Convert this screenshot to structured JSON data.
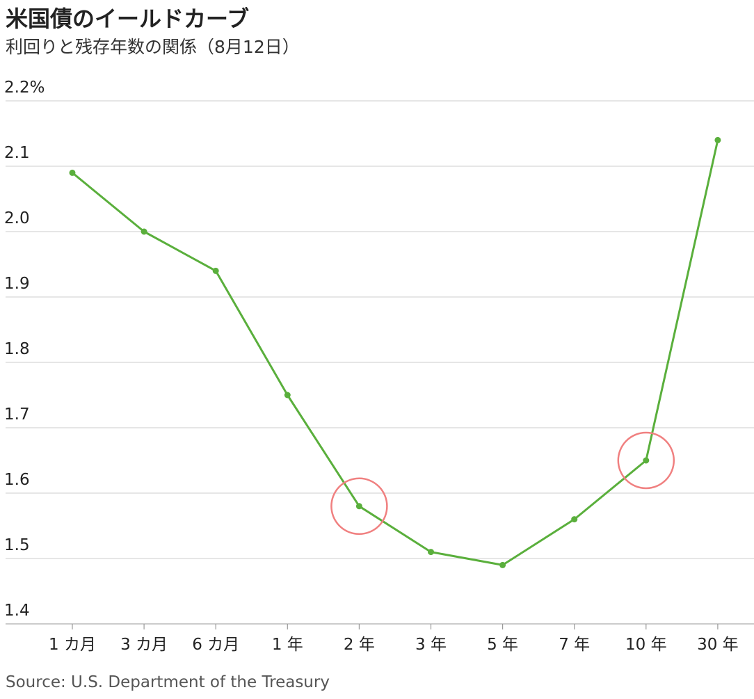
{
  "header": {
    "title": "米国債のイールドカーブ",
    "subtitle": "利回りと残存年数の関係（8月12日）"
  },
  "footer": {
    "source": "Source: U.S. Department of the Treasury"
  },
  "chart_data": {
    "type": "line",
    "title": "米国債のイールドカーブ",
    "subtitle": "利回りと残存年数の関係（8月12日）",
    "xlabel": "",
    "ylabel": "",
    "categories": [
      "1 カ月",
      "3 カ月",
      "6 カ月",
      "1 年",
      "2 年",
      "3 年",
      "5 年",
      "7 年",
      "10 年",
      "30 年"
    ],
    "series": [
      {
        "values": [
          2.09,
          2.0,
          1.94,
          1.75,
          1.58,
          1.51,
          1.49,
          1.56,
          1.65,
          2.14
        ],
        "color": "#5aaf3c"
      }
    ],
    "ylim": [
      1.4,
      2.2
    ],
    "yticks": [
      1.4,
      1.5,
      1.6,
      1.7,
      1.8,
      1.9,
      2.0,
      2.1,
      2.2
    ],
    "ytick_labels": [
      "1.4",
      "1.5",
      "1.6",
      "1.7",
      "1.8",
      "1.9",
      "2.0",
      "2.1",
      "2.2%"
    ],
    "grid": true,
    "annotations": [
      {
        "type": "circle",
        "category": "2 年",
        "value": 1.58,
        "color": "#f08080"
      },
      {
        "type": "circle",
        "category": "10 年",
        "value": 1.65,
        "color": "#f08080"
      }
    ],
    "source": "Source: U.S. Department of the Treasury"
  }
}
